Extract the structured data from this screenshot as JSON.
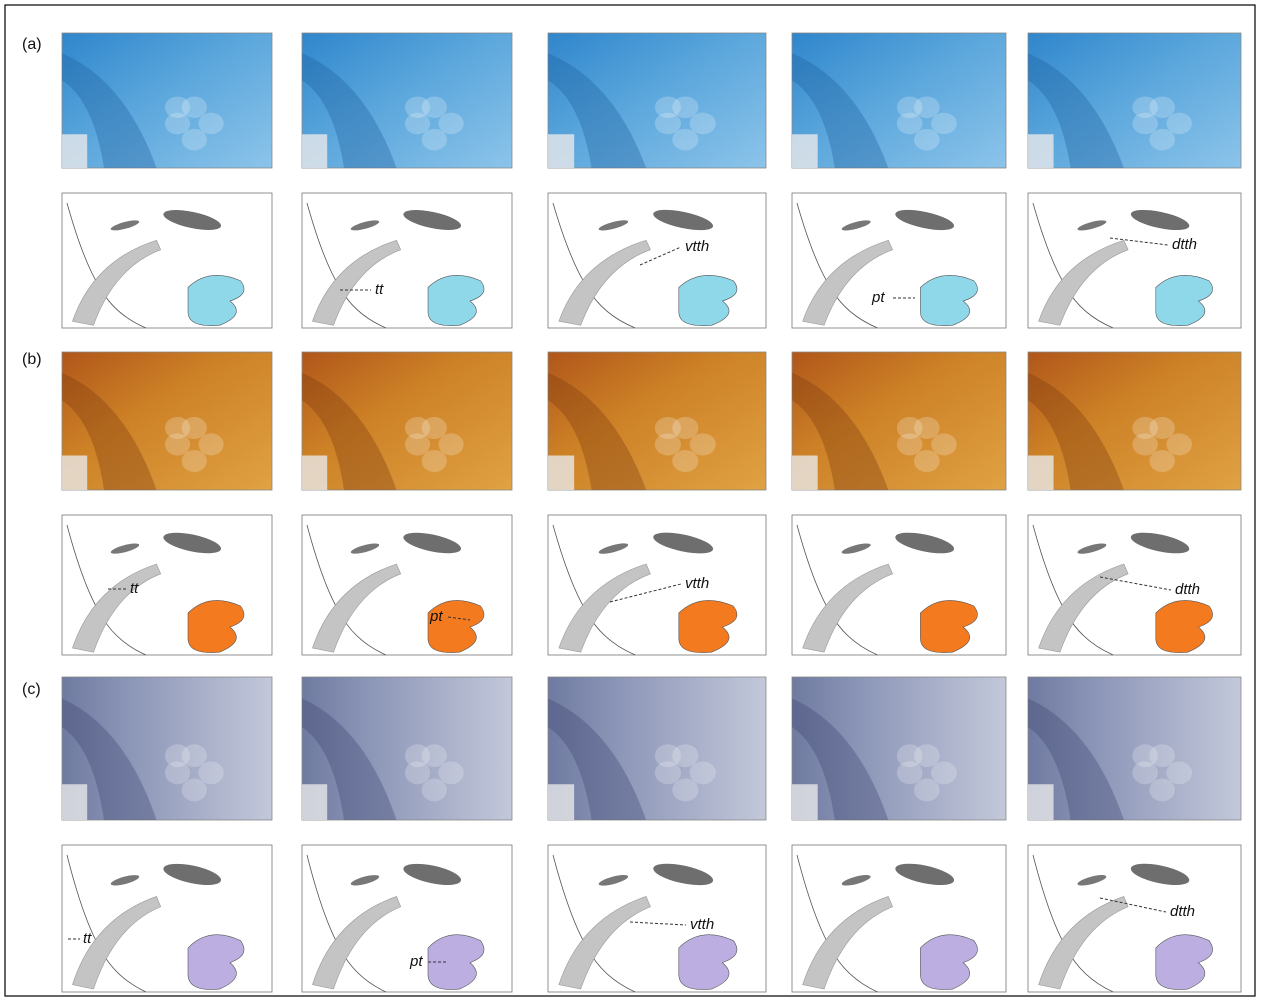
{
  "panels": [
    {
      "label": "(a)",
      "annotations": [
        "tt",
        "vtth",
        "pt",
        "dtth"
      ]
    },
    {
      "label": "(b)",
      "annotations": [
        "tt",
        "pt",
        "vtth",
        "dtth"
      ]
    },
    {
      "label": "(c)",
      "annotations": [
        "tt",
        "pt",
        "vtth",
        "dtth"
      ]
    }
  ]
}
